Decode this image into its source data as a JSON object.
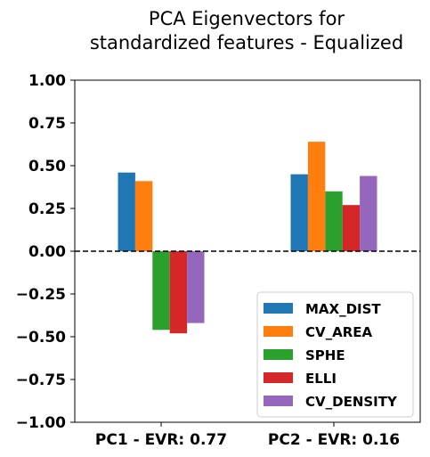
{
  "chart_data": {
    "type": "bar",
    "title_lines": [
      "PCA Eigenvectors for",
      "standardized features - Equalized"
    ],
    "xlabel": "",
    "ylabel": "",
    "categories": [
      "PC1 - EVR: 0.77",
      "PC2 - EVR: 0.16"
    ],
    "ylim": [
      -1.0,
      1.0
    ],
    "yticks": [
      1.0,
      0.75,
      0.5,
      0.25,
      0.0,
      -0.25,
      -0.5,
      -0.75,
      -1.0
    ],
    "ytick_labels": [
      "1.00",
      "0.75",
      "0.50",
      "0.25",
      "0.00",
      "−0.25",
      "−0.50",
      "−0.75",
      "−1.00"
    ],
    "grid": false,
    "zero_line": "dashed",
    "legend_position": "bottom-right",
    "series": [
      {
        "name": "MAX_DIST",
        "color": "#1f77b4",
        "values": [
          0.46,
          0.45
        ]
      },
      {
        "name": "CV_AREA",
        "color": "#ff7f0e",
        "values": [
          0.41,
          0.64
        ]
      },
      {
        "name": "SPHE",
        "color": "#2ca02c",
        "values": [
          -0.46,
          0.35
        ]
      },
      {
        "name": "ELLI",
        "color": "#d62728",
        "values": [
          -0.48,
          0.27
        ]
      },
      {
        "name": "CV_DENSITY",
        "color": "#9467bd",
        "values": [
          -0.42,
          0.44
        ]
      }
    ]
  }
}
